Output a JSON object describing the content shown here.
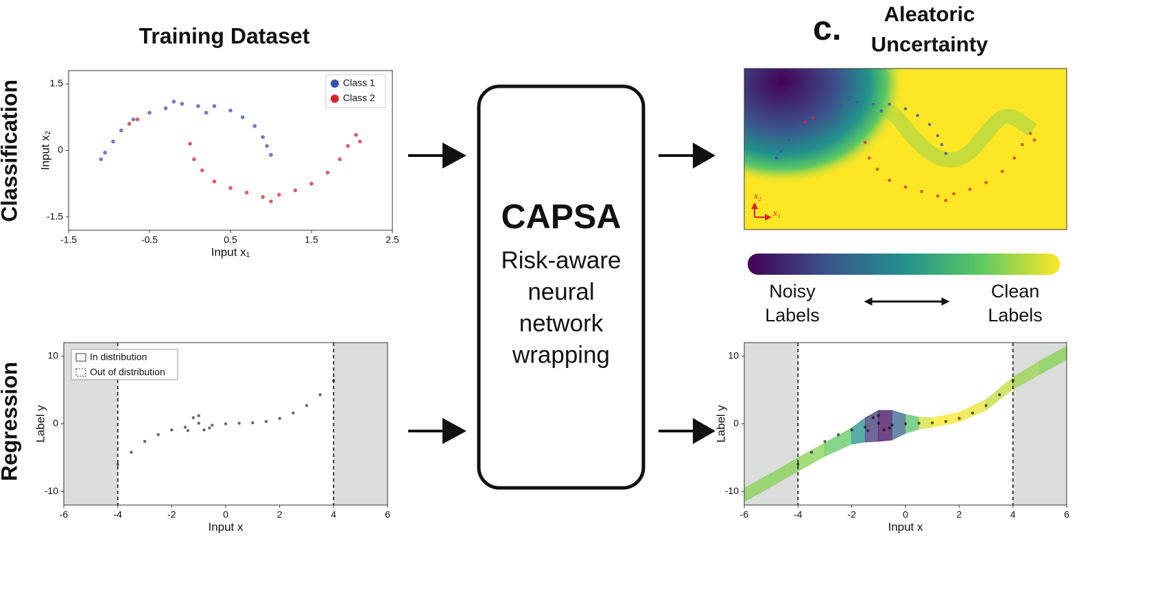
{
  "title": "Training Dataset",
  "row_labels": [
    "Classification",
    "Regression"
  ],
  "capsa": {
    "title": "CAPSA",
    "lines": [
      "Risk-aware",
      "neural",
      "network",
      "wrapping"
    ]
  },
  "colorbar": {
    "colors": [
      "#440154",
      "#3b528b",
      "#21918c",
      "#5ec962",
      "#fde725"
    ],
    "low_label": [
      "Noisy",
      "Labels"
    ],
    "high_label": [
      "Clean",
      "Labels"
    ]
  },
  "chart_data": [
    {
      "type": "scatter",
      "xlabel": "Input x₁",
      "ylabel": "Input x₂",
      "xlim": [
        -1.5,
        2.5
      ],
      "ylim": [
        -1.8,
        1.8
      ],
      "xticks": [
        -1.5,
        -0.5,
        0.5,
        1.5,
        2.5
      ],
      "yticks": [
        -1.5,
        0,
        1.5
      ],
      "legend_loc": "upper right",
      "series": [
        {
          "name": "Class 1",
          "color": "#3a4fb0",
          "x": [
            -1.05,
            -0.95,
            -0.85,
            -0.7,
            -0.5,
            -0.3,
            -0.1,
            0.1,
            0.3,
            0.5,
            0.65,
            0.8,
            0.9,
            0.95,
            1.0,
            -1.1,
            0.2,
            -0.2
          ],
          "values": [
            -0.05,
            0.2,
            0.45,
            0.7,
            0.85,
            0.95,
            1.05,
            1.0,
            1.0,
            0.9,
            0.75,
            0.55,
            0.3,
            0.1,
            -0.1,
            -0.2,
            0.85,
            1.1
          ]
        },
        {
          "name": "Class 2",
          "color": "#d62728",
          "x": [
            -0.65,
            -0.75,
            0.0,
            0.05,
            0.15,
            0.3,
            0.5,
            0.7,
            0.9,
            1.1,
            1.3,
            1.5,
            1.7,
            1.85,
            1.95,
            2.05,
            2.1,
            1.0
          ],
          "values": [
            0.7,
            0.6,
            0.15,
            -0.2,
            -0.45,
            -0.7,
            -0.85,
            -0.95,
            -1.05,
            -1.0,
            -0.9,
            -0.75,
            -0.5,
            -0.2,
            0.1,
            0.35,
            0.2,
            -1.15
          ]
        }
      ]
    },
    {
      "type": "scatter",
      "xlabel": "Input x",
      "ylabel": "Label y",
      "xlim": [
        -6,
        6
      ],
      "ylim": [
        -12,
        12
      ],
      "xticks": [
        -6,
        -4,
        -2,
        0,
        2,
        4,
        6
      ],
      "yticks": [
        -10,
        0,
        10
      ],
      "color": "#000000",
      "ood_bounds": [
        -4,
        4
      ],
      "legend": [
        "In distribution",
        "Out of distribution"
      ],
      "legend_loc": "upper left",
      "x": [
        -4,
        -3.5,
        -3,
        -2.5,
        -2,
        -1.5,
        -1,
        -0.5,
        0,
        0.5,
        1,
        1.5,
        2,
        2.5,
        3,
        3.5,
        4,
        -1.2,
        -0.8,
        -1.0,
        -0.6,
        -1.4
      ],
      "values": [
        -6.0,
        -4.2,
        -2.6,
        -1.6,
        -0.9,
        -0.5,
        0.1,
        -0.2,
        0,
        0.1,
        0.15,
        0.35,
        0.8,
        1.6,
        2.7,
        4.3,
        6.4,
        0.9,
        -0.9,
        1.2,
        -0.6,
        -1.0
      ]
    },
    {
      "type": "heatmap",
      "panel": "c.",
      "title_lines": [
        "Aleatoric",
        "Uncertainty"
      ],
      "xlabel": "x₁",
      "ylabel": "x₂"
    },
    {
      "type": "band",
      "xlabel": "Input x",
      "ylabel": "Label y",
      "xlim": [
        -6,
        6
      ],
      "ylim": [
        -12,
        12
      ],
      "xticks": [
        -6,
        -4,
        -2,
        0,
        2,
        4,
        6
      ],
      "yticks": [
        -10,
        0,
        10
      ],
      "ood_bounds": [
        -4,
        4
      ],
      "x": [
        -6,
        -5,
        -4,
        -3,
        -2,
        -1.5,
        -1,
        -0.5,
        0,
        0.5,
        1,
        2,
        3,
        4,
        5,
        6
      ],
      "values": [
        -10.5,
        -8.3,
        -6.0,
        -3.8,
        -1.8,
        -0.9,
        -0.3,
        -0.2,
        0,
        0.1,
        0.2,
        1.0,
        2.8,
        6.0,
        8.3,
        10.5
      ],
      "widths": [
        1,
        1,
        1,
        1,
        1.2,
        1.8,
        2.3,
        2.2,
        1.4,
        0.9,
        0.7,
        0.7,
        0.8,
        0.9,
        1,
        1
      ]
    }
  ]
}
